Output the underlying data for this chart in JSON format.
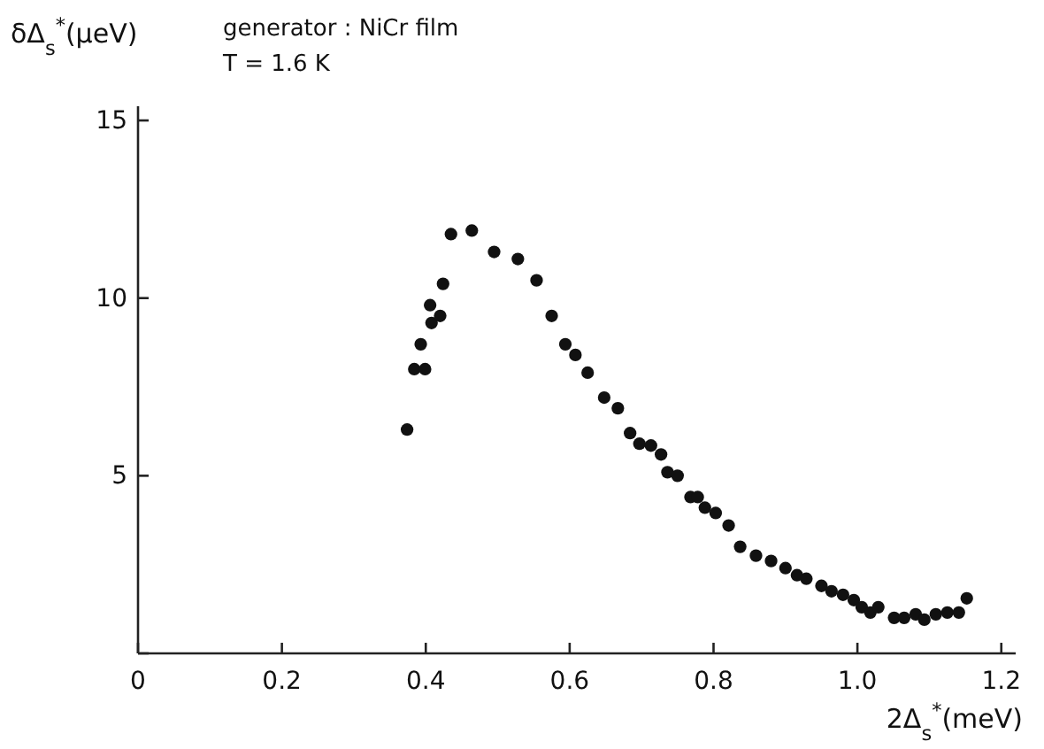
{
  "chart_data": {
    "type": "scatter",
    "xlabel": "2Δ$_{s}$$^{*}$(meV)",
    "ylabel": "δΔ$_{s}$$^{*}$(μeV)",
    "annotations": [
      "generator : NiCr film",
      "T = 1.6 K"
    ],
    "xlim": [
      0,
      1.22
    ],
    "ylim": [
      0,
      15.4
    ],
    "xticks": [
      0,
      0.2,
      0.4,
      0.6,
      0.8,
      {
        "value": 1.0,
        "label": "1.0"
      },
      1.2
    ],
    "yticks": [
      {
        "value": 0,
        "label": null
      },
      5,
      10,
      15
    ],
    "marker": "circle",
    "series": [
      {
        "color": "#111111",
        "x": [
          0.374,
          0.384,
          0.393,
          0.399,
          0.406,
          0.408,
          0.42,
          0.424,
          0.435,
          0.464,
          0.495,
          0.528,
          0.554,
          0.575,
          0.594,
          0.608,
          0.625,
          0.648,
          0.667,
          0.684,
          0.697,
          0.713,
          0.727,
          0.736,
          0.75,
          0.768,
          0.778,
          0.788,
          0.803,
          0.821,
          0.837,
          0.859,
          0.88,
          0.9,
          0.916,
          0.929,
          0.95,
          0.964,
          0.98,
          0.995,
          1.006,
          1.018,
          1.029,
          1.051,
          1.065,
          1.081,
          1.093,
          1.109,
          1.125,
          1.141,
          1.152
        ],
        "values": [
          6.3,
          8.0,
          8.7,
          8.0,
          9.8,
          9.3,
          9.5,
          10.4,
          11.8,
          11.9,
          11.3,
          11.1,
          10.5,
          9.5,
          8.7,
          8.4,
          7.9,
          7.2,
          6.9,
          6.2,
          5.9,
          5.85,
          5.6,
          5.1,
          5.0,
          4.4,
          4.4,
          4.1,
          3.95,
          3.6,
          3.0,
          2.75,
          2.6,
          2.4,
          2.2,
          2.1,
          1.9,
          1.75,
          1.65,
          1.5,
          1.3,
          1.15,
          1.3,
          1.0,
          1.0,
          1.1,
          0.95,
          1.1,
          1.15,
          1.15,
          1.55
        ]
      }
    ]
  }
}
